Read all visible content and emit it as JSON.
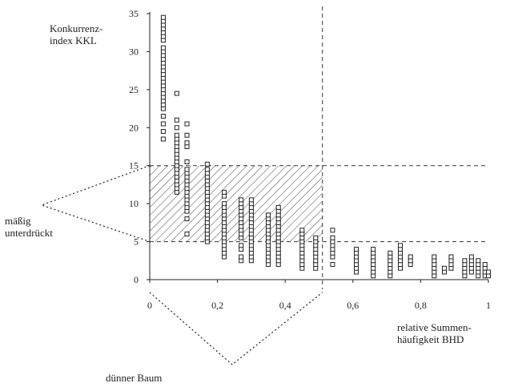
{
  "chart_data": {
    "type": "scatter",
    "ylabel": "Konkurrenz-\nindex KKL",
    "xlabel": "relative Summen-\nhäufigkeit BHD",
    "xlim": [
      0,
      1
    ],
    "ylim": [
      0,
      35
    ],
    "x_ticks": [
      0,
      0.2,
      0.4,
      0.6,
      0.8,
      1
    ],
    "x_tick_labels": [
      "0",
      "0,2",
      "0,4",
      "0,6",
      "0,8",
      "1"
    ],
    "y_ticks": [
      0,
      5,
      10,
      15,
      20,
      25,
      30,
      35
    ],
    "y_tick_labels": [
      "0",
      "5",
      "10",
      "15",
      "20",
      "25",
      "30",
      "35"
    ],
    "marker": "open-square",
    "reference_lines": {
      "horizontal": [
        5,
        15
      ],
      "vertical": [
        0.51
      ]
    },
    "hatched_region": {
      "x": [
        0,
        0.51
      ],
      "y": [
        5,
        15
      ]
    },
    "annotations": [
      {
        "label": "mäßig\nunterdrückt",
        "points_to": "hatched_region_left_edge"
      },
      {
        "label": "dünner Baum",
        "points_to": "x_range_0_to_0.51"
      }
    ],
    "series_columns": [
      {
        "x": 0.04,
        "y_values": [
          18.5,
          19.5,
          20.5,
          21.5,
          22.5,
          23,
          23.5,
          24,
          24.5,
          25,
          25.5,
          26,
          26.5,
          27,
          27.5,
          28,
          28.5,
          29,
          29.5,
          30,
          30.5,
          31.5,
          32,
          32.5,
          33,
          33.5,
          34,
          34.5
        ]
      },
      {
        "x": 0.08,
        "y_values": [
          11.5,
          12,
          12.5,
          13,
          13.5,
          14,
          14.5,
          15,
          15.5,
          16,
          16.5,
          17,
          17.5,
          18,
          18.5,
          19,
          20,
          21,
          24.5
        ]
      },
      {
        "x": 0.11,
        "y_values": [
          6,
          8,
          9,
          9.5,
          10,
          10.5,
          11,
          11.5,
          12,
          12.5,
          13,
          13.5,
          14,
          14.5,
          15.5,
          17.5,
          18,
          19,
          20.5
        ]
      },
      {
        "x": 0.17,
        "y_values": [
          5,
          5.5,
          6,
          6.5,
          7,
          7.5,
          8,
          8.5,
          9,
          9.5,
          10,
          10.5,
          11,
          11.5,
          12,
          12.5,
          13,
          13.5,
          14,
          14.5,
          15.2
        ]
      },
      {
        "x": 0.22,
        "y_values": [
          3,
          3.5,
          4,
          4.5,
          5,
          5.5,
          6,
          6.5,
          7,
          7.5,
          8,
          8.5,
          9,
          9.5,
          10,
          11,
          11.5
        ]
      },
      {
        "x": 0.27,
        "y_values": [
          2.5,
          3,
          4,
          4.5,
          5.5,
          6,
          6.5,
          7,
          7.5,
          8,
          8.5,
          9,
          9.5,
          10,
          10.5
        ]
      },
      {
        "x": 0.3,
        "y_values": [
          2.5,
          3,
          3.5,
          4,
          4.5,
          5,
          5.5,
          6,
          6.5,
          7,
          7.5,
          8,
          8.5,
          9,
          9.5,
          10,
          10.5
        ]
      },
      {
        "x": 0.35,
        "y_values": [
          2,
          2.5,
          3,
          3.5,
          4,
          4.5,
          5,
          5.5,
          6,
          6.5,
          7,
          7.5,
          8,
          8.5
        ]
      },
      {
        "x": 0.38,
        "y_values": [
          2,
          2.5,
          3,
          3.5,
          4,
          4.5,
          5,
          5.5,
          6,
          6.5,
          7,
          7.5,
          8,
          8.5,
          9,
          9.5
        ]
      },
      {
        "x": 0.45,
        "y_values": [
          1.5,
          2,
          2.5,
          3,
          3.5,
          4,
          4.5,
          5,
          5.5,
          6,
          6.5
        ]
      },
      {
        "x": 0.49,
        "y_values": [
          1.5,
          2,
          2.5,
          3,
          3.5,
          4,
          4.5,
          5,
          5.5
        ]
      },
      {
        "x": 0.54,
        "y_values": [
          2,
          3,
          3.5,
          4,
          4.5,
          5,
          5.5,
          6.5
        ]
      },
      {
        "x": 0.61,
        "y_values": [
          1,
          1.5,
          2,
          2.5,
          3,
          3.5,
          4
        ]
      },
      {
        "x": 0.66,
        "y_values": [
          0.5,
          1,
          1.5,
          2,
          2.5,
          3,
          3.5,
          4
        ]
      },
      {
        "x": 0.71,
        "y_values": [
          0.5,
          1,
          1.5,
          2,
          2.5,
          3,
          3.5
        ]
      },
      {
        "x": 0.74,
        "y_values": [
          1.5,
          2,
          2.5,
          3,
          3.5,
          4,
          4.5
        ]
      },
      {
        "x": 0.77,
        "y_values": [
          2,
          2.5,
          3
        ]
      },
      {
        "x": 0.84,
        "y_values": [
          0.5,
          1,
          1.5,
          2,
          2.5,
          3
        ]
      },
      {
        "x": 0.87,
        "y_values": [
          1,
          1.5
        ]
      },
      {
        "x": 0.89,
        "y_values": [
          1.5,
          2,
          2.5,
          3
        ]
      },
      {
        "x": 0.93,
        "y_values": [
          0.5,
          1,
          1.5,
          2,
          2.5
        ]
      },
      {
        "x": 0.95,
        "y_values": [
          1,
          1.5,
          2,
          2.5,
          3
        ]
      },
      {
        "x": 0.97,
        "y_values": [
          0.5,
          1,
          1.5,
          2,
          2.5
        ]
      },
      {
        "x": 0.99,
        "y_values": [
          0.5,
          1,
          1.5,
          2
        ]
      },
      {
        "x": 1.0,
        "y_values": [
          0.5,
          1
        ]
      }
    ]
  }
}
